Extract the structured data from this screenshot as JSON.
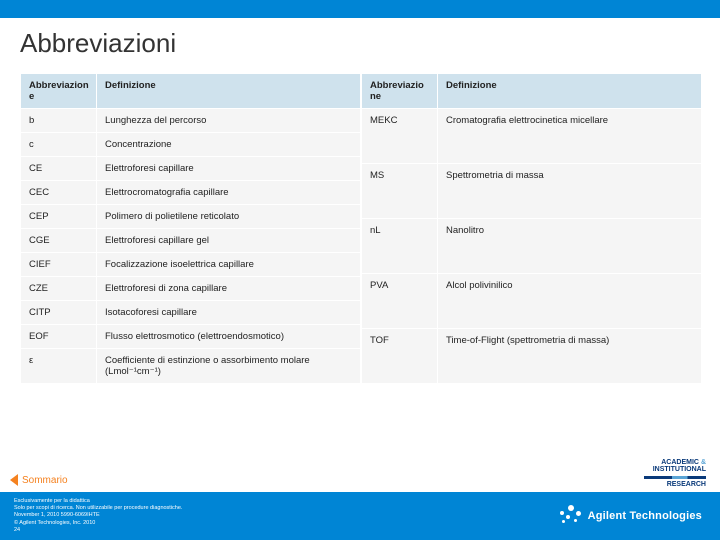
{
  "title": "Abbreviazioni",
  "headers": {
    "abbr": "Abbreviazione",
    "abbr_l": "Abbreviazion e",
    "abbr_r": "Abbreviazio ne",
    "def": "Definizione"
  },
  "left_rows": [
    {
      "a": "b",
      "d": "Lunghezza del percorso"
    },
    {
      "a": "c",
      "d": "Concentrazione"
    },
    {
      "a": "CE",
      "d": "Elettroforesi capillare"
    },
    {
      "a": "CEC",
      "d": "Elettrocromatografia capillare"
    },
    {
      "a": "CEP",
      "d": "Polimero di polietilene reticolato"
    },
    {
      "a": "CGE",
      "d": "Elettroforesi capillare gel"
    },
    {
      "a": "CIEF",
      "d": "Focalizzazione isoelettrica capillare"
    },
    {
      "a": "CZE",
      "d": "Elettroforesi di zona capillare"
    },
    {
      "a": "CITP",
      "d": "Isotacoforesi capillare"
    },
    {
      "a": "EOF",
      "d": "Flusso elettrosmotico (elettroendosmotico)"
    },
    {
      "a": "ε",
      "d": "Coefficiente di estinzione o assorbimento molare (Lmol⁻¹cm⁻¹)"
    }
  ],
  "right_rows": [
    {
      "a": "MEKC",
      "d": "Cromatografia elettrocinetica micellare"
    },
    {
      "a": "MS",
      "d": "Spettrometria di massa"
    },
    {
      "a": "nL",
      "d": "Nanolitro"
    },
    {
      "a": "PVA",
      "d": "Alcol polivinilico"
    },
    {
      "a": "TOF",
      "d": "Time-of-Flight (spettrometria di massa)"
    }
  ],
  "sommario": "Sommario",
  "footer": {
    "l1": "Esclusivamente per la didattica",
    "l2": "Solo per scopi di ricerca. Non utilizzabile per procedure diagnostiche.",
    "l3": "November 1, 2010   5990-6069IHTE",
    "l4": "© Agilent Technologies, Inc. 2010",
    "l5": "24"
  },
  "brand": "Agilent Technologies",
  "air": {
    "l1": "ACADEMIC",
    "amp": "&",
    "l2": "INSTITUTIONAL",
    "l3": "RESEARCH"
  },
  "colors": {
    "brand_blue": "#0085d5",
    "header_bg": "#cfe2ed",
    "row_bg": "#f5f5f5",
    "orange": "#f58220"
  }
}
